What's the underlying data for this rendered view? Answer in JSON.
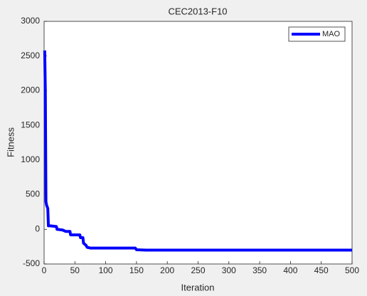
{
  "chart_data": {
    "type": "line",
    "title": "CEC2013-F10",
    "xlabel": "Iteration",
    "ylabel": "Fitness",
    "x": [
      1,
      2,
      3,
      4,
      6,
      7,
      10,
      20,
      21,
      30,
      35,
      42,
      43,
      58,
      59,
      63,
      64,
      68,
      70,
      75,
      148,
      150,
      165,
      500
    ],
    "series": [
      {
        "name": "MAO",
        "color": "#0000ff",
        "values": [
          2580,
          2000,
          400,
          350,
          300,
          50,
          50,
          40,
          0,
          -10,
          -30,
          -30,
          -80,
          -80,
          -120,
          -120,
          -200,
          -230,
          -260,
          -270,
          -270,
          -295,
          -300,
          -300
        ]
      }
    ],
    "xlim": [
      0,
      500
    ],
    "xticks": [
      0,
      50,
      100,
      150,
      200,
      250,
      300,
      350,
      400,
      450,
      500
    ],
    "ylim": [
      -500,
      3000
    ],
    "yticks": [
      -500,
      0,
      500,
      1000,
      1500,
      2000,
      2500,
      3000
    ],
    "legend": "top-right"
  }
}
